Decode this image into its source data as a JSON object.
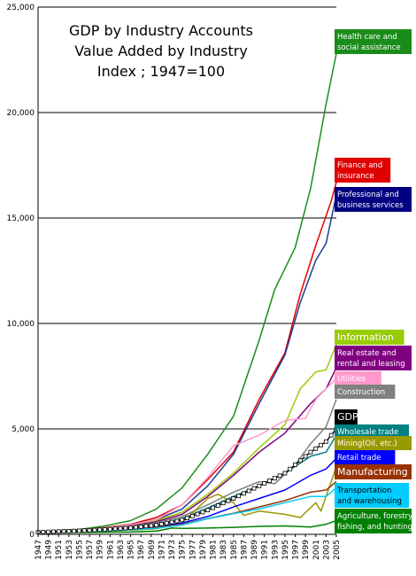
{
  "chart_data": {
    "type": "line",
    "title": [
      "GDP by Industry Accounts",
      "Value Added by Industry",
      "Index ; 1947=100"
    ],
    "xlabel": "",
    "ylabel": "",
    "xlim": [
      1947,
      2005
    ],
    "ylim": [
      0,
      25000
    ],
    "y_ticks": [
      0,
      5000,
      10000,
      15000,
      20000,
      25000
    ],
    "y_tick_labels": [
      "0",
      "5,000",
      "10,000",
      "15,000",
      "20,000",
      "25,000"
    ],
    "x_tick_labels": [
      "1947",
      "1949",
      "1951",
      "1953",
      "1955",
      "1957",
      "1959",
      "1961",
      "1963",
      "1965",
      "1967",
      "1969",
      "1971",
      "1973",
      "1975",
      "1977",
      "1979",
      "1981",
      "1983",
      "1985",
      "1987",
      "1989",
      "1991",
      "1993",
      "1995",
      "1997",
      "1999",
      "2001",
      "2003",
      "2005"
    ],
    "grid": "horizontal",
    "legend": "right, labels at line ends",
    "series": [
      {
        "name": "Health care and social assistance",
        "label_lines": [
          "Health care and",
          "social assistance"
        ],
        "color": "#1a8c1a",
        "label_bg": "#1a8c1a",
        "label_fg": "#ffffff",
        "points": [
          [
            1947,
            100
          ],
          [
            1955,
            230
          ],
          [
            1960,
            400
          ],
          [
            1965,
            650
          ],
          [
            1970,
            1200
          ],
          [
            1975,
            2200
          ],
          [
            1980,
            3800
          ],
          [
            1985,
            5600
          ],
          [
            1990,
            9200
          ],
          [
            1993,
            11600
          ],
          [
            1997,
            13600
          ],
          [
            2000,
            16400
          ],
          [
            2003,
            20400
          ],
          [
            2005,
            22800
          ]
        ]
      },
      {
        "name": "Finance and insurance",
        "label_lines": [
          "Finance and",
          "insurance"
        ],
        "color": "#e00000",
        "label_bg": "#e00000",
        "label_fg": "#ffffff",
        "points": [
          [
            1947,
            100
          ],
          [
            1955,
            200
          ],
          [
            1960,
            320
          ],
          [
            1965,
            480
          ],
          [
            1970,
            800
          ],
          [
            1975,
            1400
          ],
          [
            1980,
            2600
          ],
          [
            1985,
            3900
          ],
          [
            1990,
            6400
          ],
          [
            1995,
            8600
          ],
          [
            1998,
            11400
          ],
          [
            2001,
            13700
          ],
          [
            2004,
            15800
          ],
          [
            2005,
            16700
          ]
        ]
      },
      {
        "name": "Professional and business services",
        "label_lines": [
          "Professional and",
          "business services"
        ],
        "color": "#1f3a93",
        "label_bg": "#000080",
        "label_fg": "#ffffff",
        "points": [
          [
            1947,
            100
          ],
          [
            1955,
            190
          ],
          [
            1960,
            300
          ],
          [
            1965,
            450
          ],
          [
            1970,
            700
          ],
          [
            1975,
            1200
          ],
          [
            1980,
            2300
          ],
          [
            1985,
            3800
          ],
          [
            1990,
            6200
          ],
          [
            1995,
            8500
          ],
          [
            1998,
            11000
          ],
          [
            2001,
            13000
          ],
          [
            2003,
            13800
          ],
          [
            2005,
            16100
          ]
        ]
      },
      {
        "name": "Information",
        "label_lines": [
          "Information"
        ],
        "color": "#99cc00",
        "label_bg": "#99cc00",
        "label_fg": "#ffffff",
        "label_big": true,
        "points": [
          [
            1947,
            100
          ],
          [
            1955,
            170
          ],
          [
            1960,
            280
          ],
          [
            1965,
            420
          ],
          [
            1970,
            650
          ],
          [
            1975,
            1050
          ],
          [
            1980,
            1900
          ],
          [
            1985,
            2900
          ],
          [
            1990,
            4100
          ],
          [
            1995,
            5200
          ],
          [
            1998,
            6900
          ],
          [
            2001,
            7700
          ],
          [
            2003,
            7800
          ],
          [
            2005,
            9000
          ]
        ]
      },
      {
        "name": "Real estate and rental and leasing",
        "label_lines": [
          "Real estate and",
          "rental and leasing"
        ],
        "color": "#800080",
        "label_bg": "#800080",
        "label_fg": "#ffffff",
        "points": [
          [
            1947,
            100
          ],
          [
            1955,
            170
          ],
          [
            1960,
            270
          ],
          [
            1965,
            400
          ],
          [
            1970,
            600
          ],
          [
            1975,
            950
          ],
          [
            1980,
            1800
          ],
          [
            1985,
            2800
          ],
          [
            1990,
            3900
          ],
          [
            1995,
            4800
          ],
          [
            2000,
            6200
          ],
          [
            2003,
            6900
          ],
          [
            2005,
            7900
          ]
        ]
      },
      {
        "name": "Utilities",
        "label_lines": [
          "Utilities"
        ],
        "color": "#ff99cc",
        "label_bg": "#ff99cc",
        "label_fg": "#ffffff",
        "points": [
          [
            1947,
            100
          ],
          [
            1955,
            190
          ],
          [
            1960,
            300
          ],
          [
            1965,
            450
          ],
          [
            1970,
            700
          ],
          [
            1975,
            1400
          ],
          [
            1980,
            2700
          ],
          [
            1985,
            4200
          ],
          [
            1990,
            4700
          ],
          [
            1995,
            5400
          ],
          [
            1999,
            5500
          ],
          [
            2001,
            6400
          ],
          [
            2005,
            7400
          ]
        ]
      },
      {
        "name": "Construction",
        "label_lines": [
          "Construction"
        ],
        "color": "#808080",
        "label_bg": "#808080",
        "label_fg": "#ffffff",
        "points": [
          [
            1947,
            100
          ],
          [
            1955,
            180
          ],
          [
            1960,
            260
          ],
          [
            1965,
            380
          ],
          [
            1970,
            550
          ],
          [
            1975,
            850
          ],
          [
            1980,
            1400
          ],
          [
            1985,
            2000
          ],
          [
            1990,
            2500
          ],
          [
            1993,
            2400
          ],
          [
            1997,
            3300
          ],
          [
            2000,
            4300
          ],
          [
            2003,
            5100
          ],
          [
            2005,
            6400
          ]
        ]
      },
      {
        "name": "GDP",
        "label_lines": [
          "GDP"
        ],
        "color": "#000000",
        "label_bg": "#000000",
        "label_fg": "#ffffff",
        "label_big": true,
        "markers": true,
        "points": [
          [
            1947,
            100
          ],
          [
            1955,
            170
          ],
          [
            1960,
            230
          ],
          [
            1965,
            310
          ],
          [
            1970,
            440
          ],
          [
            1975,
            680
          ],
          [
            1980,
            1150
          ],
          [
            1985,
            1700
          ],
          [
            1990,
            2300
          ],
          [
            1995,
            2900
          ],
          [
            2000,
            3900
          ],
          [
            2003,
            4400
          ],
          [
            2005,
            5000
          ]
        ]
      },
      {
        "name": "Wholesale trade",
        "label_lines": [
          "Wholesale trade"
        ],
        "color": "#008080",
        "label_bg": "#008080",
        "label_fg": "#ffffff",
        "points": [
          [
            1947,
            100
          ],
          [
            1955,
            160
          ],
          [
            1960,
            230
          ],
          [
            1965,
            320
          ],
          [
            1970,
            460
          ],
          [
            1975,
            750
          ],
          [
            1980,
            1250
          ],
          [
            1985,
            1800
          ],
          [
            1990,
            2300
          ],
          [
            1995,
            2900
          ],
          [
            2000,
            3700
          ],
          [
            2003,
            3900
          ],
          [
            2005,
            4700
          ]
        ]
      },
      {
        "name": "Mining(Oil, etc.)",
        "label_lines": [
          "Mining(Oil, etc.)"
        ],
        "color": "#999900",
        "label_bg": "#999900",
        "label_fg": "#ffffff",
        "points": [
          [
            1947,
            100
          ],
          [
            1955,
            150
          ],
          [
            1960,
            170
          ],
          [
            1965,
            200
          ],
          [
            1970,
            260
          ],
          [
            1975,
            550
          ],
          [
            1980,
            1700
          ],
          [
            1982,
            1900
          ],
          [
            1985,
            1500
          ],
          [
            1987,
            900
          ],
          [
            1990,
            1100
          ],
          [
            1995,
            950
          ],
          [
            1998,
            800
          ],
          [
            2001,
            1500
          ],
          [
            2002,
            1100
          ],
          [
            2005,
            3200
          ]
        ]
      },
      {
        "name": "Retail trade",
        "label_lines": [
          "Retail trade"
        ],
        "color": "#0000ff",
        "label_bg": "#0000ff",
        "label_fg": "#ffffff",
        "points": [
          [
            1947,
            100
          ],
          [
            1955,
            150
          ],
          [
            1960,
            200
          ],
          [
            1965,
            260
          ],
          [
            1970,
            360
          ],
          [
            1975,
            540
          ],
          [
            1980,
            850
          ],
          [
            1985,
            1300
          ],
          [
            1990,
            1700
          ],
          [
            1995,
            2100
          ],
          [
            2000,
            2800
          ],
          [
            2003,
            3100
          ],
          [
            2005,
            3600
          ]
        ]
      },
      {
        "name": "Manufacturing",
        "label_lines": [
          "Manufacturing"
        ],
        "color": "#993300",
        "label_bg": "#993300",
        "label_fg": "#ffffff",
        "label_big": true,
        "points": [
          [
            1947,
            100
          ],
          [
            1955,
            160
          ],
          [
            1960,
            200
          ],
          [
            1965,
            270
          ],
          [
            1970,
            330
          ],
          [
            1975,
            480
          ],
          [
            1980,
            750
          ],
          [
            1985,
            1000
          ],
          [
            1990,
            1300
          ],
          [
            1995,
            1600
          ],
          [
            2000,
            2000
          ],
          [
            2003,
            2100
          ],
          [
            2005,
            2500
          ]
        ]
      },
      {
        "name": "Transportation and warehousing",
        "label_lines": [
          "Transportation",
          "and warehousing"
        ],
        "color": "#00ccff",
        "label_bg": "#00ccff",
        "label_fg": "#000000",
        "points": [
          [
            1947,
            100
          ],
          [
            1955,
            140
          ],
          [
            1960,
            170
          ],
          [
            1965,
            220
          ],
          [
            1970,
            290
          ],
          [
            1975,
            440
          ],
          [
            1980,
            740
          ],
          [
            1985,
            980
          ],
          [
            1990,
            1200
          ],
          [
            1995,
            1500
          ],
          [
            2000,
            1800
          ],
          [
            2003,
            1800
          ],
          [
            2005,
            2200
          ]
        ]
      },
      {
        "name": "Agriculture, forestry, fishing, and hunting",
        "label_lines": [
          "Agriculture, forestry,",
          "fishing, and hunting"
        ],
        "color": "#008000",
        "label_bg": "#008000",
        "label_fg": "#ffffff",
        "points": [
          [
            1947,
            100
          ],
          [
            1955,
            90
          ],
          [
            1960,
            100
          ],
          [
            1965,
            110
          ],
          [
            1970,
            150
          ],
          [
            1973,
            300
          ],
          [
            1975,
            280
          ],
          [
            1980,
            300
          ],
          [
            1985,
            330
          ],
          [
            1990,
            380
          ],
          [
            1995,
            400
          ],
          [
            2000,
            350
          ],
          [
            2003,
            480
          ],
          [
            2005,
            650
          ]
        ]
      }
    ]
  }
}
